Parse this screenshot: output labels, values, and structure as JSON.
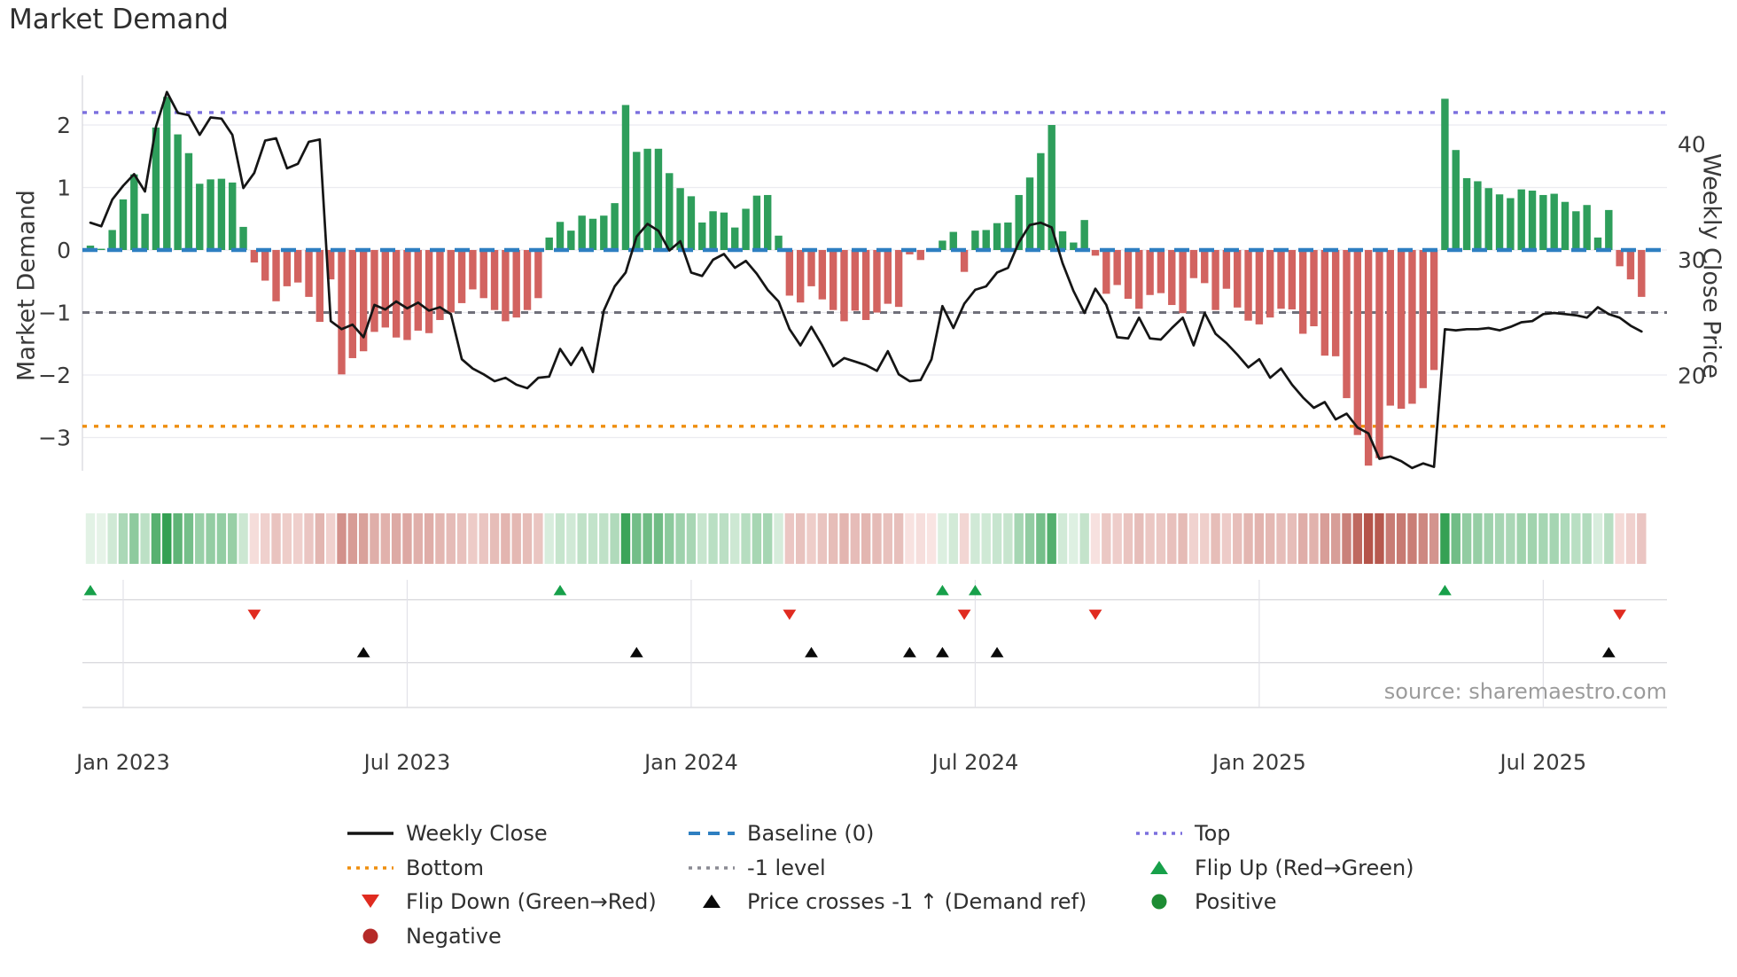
{
  "chart_data": {
    "type": "bar+line combo with heatmap strip and event markers",
    "title": "Market Demand",
    "source": "source: sharemaestro.com",
    "left_axis": {
      "label": "Market Demand",
      "ticks": [
        2,
        1,
        0,
        -1,
        -2,
        -3
      ],
      "tick_labels": [
        "2",
        "1",
        "0",
        "−1",
        "−2",
        "−3"
      ],
      "range": [
        -3.7,
        2.85
      ]
    },
    "right_axis": {
      "label": "Weekly Close Price",
      "ticks": [
        40,
        30,
        20
      ],
      "tick_labels": [
        "40",
        "30",
        "20"
      ]
    },
    "x_ticks": {
      "weeks": [
        3,
        29,
        55,
        81,
        107,
        133
      ],
      "labels": [
        "Jan 2023",
        "Jul 2023",
        "Jan 2024",
        "Jul 2024",
        "Jan 2025",
        "Jul 2025"
      ]
    },
    "ref_lines": {
      "top": 2.2,
      "baseline": 0,
      "minus1": -1,
      "bottom": -2.82
    },
    "series": [
      {
        "name": "Market Demand (weekly bars)",
        "values": [
          0.07,
          0.02,
          0.32,
          0.81,
          1.21,
          0.58,
          1.96,
          2.45,
          1.85,
          1.55,
          1.06,
          1.13,
          1.14,
          1.08,
          0.37,
          -0.2,
          -0.49,
          -0.82,
          -0.58,
          -0.52,
          -0.75,
          -1.15,
          -0.47,
          -1.99,
          -1.73,
          -1.62,
          -1.31,
          -1.24,
          -1.4,
          -1.44,
          -1.29,
          -1.33,
          -1.12,
          -1.0,
          -0.85,
          -0.63,
          -0.77,
          -0.96,
          -1.14,
          -1.08,
          -0.96,
          -0.77,
          0.2,
          0.45,
          0.31,
          0.55,
          0.5,
          0.55,
          0.75,
          2.32,
          1.57,
          1.62,
          1.62,
          1.23,
          0.99,
          0.86,
          0.44,
          0.62,
          0.6,
          0.36,
          0.66,
          0.87,
          0.88,
          0.23,
          -0.73,
          -0.84,
          -0.58,
          -0.79,
          -0.96,
          -1.14,
          -0.97,
          -1.12,
          -1.0,
          -0.86,
          -0.91,
          -0.07,
          -0.16,
          -0.02,
          0.15,
          0.29,
          -0.35,
          0.31,
          0.32,
          0.43,
          0.44,
          0.88,
          1.16,
          1.55,
          2.0,
          0.3,
          0.12,
          0.48,
          -0.09,
          -0.7,
          -0.56,
          -0.78,
          -0.94,
          -0.72,
          -0.69,
          -0.88,
          -1.01,
          -0.45,
          -0.53,
          -0.96,
          -0.62,
          -0.92,
          -1.13,
          -1.19,
          -1.08,
          -0.94,
          -0.95,
          -1.34,
          -1.22,
          -1.69,
          -1.7,
          -2.37,
          -2.96,
          -3.45,
          -3.33,
          -2.49,
          -2.54,
          -2.46,
          -2.21,
          -1.92,
          2.42,
          1.6,
          1.15,
          1.1,
          0.99,
          0.89,
          0.83,
          0.97,
          0.95,
          0.88,
          0.9,
          0.77,
          0.62,
          0.72,
          0.2,
          0.64,
          -0.26,
          -0.47,
          -0.75
        ]
      },
      {
        "name": "Weekly Close",
        "values": [
          33.2,
          32.9,
          35.2,
          36.4,
          37.4,
          35.9,
          41.5,
          44.5,
          42.7,
          42.5,
          40.8,
          42.3,
          42.2,
          40.8,
          36.2,
          37.5,
          40.3,
          40.5,
          37.9,
          38.3,
          40.2,
          40.4,
          24.7,
          24.0,
          24.4,
          23.3,
          26.1,
          25.7,
          26.4,
          25.8,
          26.3,
          25.6,
          25.9,
          25.3,
          21.4,
          20.6,
          20.1,
          19.5,
          19.8,
          19.2,
          18.9,
          19.8,
          19.9,
          22.3,
          20.9,
          22.4,
          20.3,
          25.6,
          27.7,
          28.9,
          32.0,
          33.1,
          32.5,
          30.8,
          31.6,
          28.9,
          28.6,
          30.0,
          30.5,
          29.3,
          29.9,
          28.8,
          27.4,
          26.4,
          24.0,
          22.6,
          24.2,
          22.6,
          20.8,
          21.5,
          21.2,
          20.9,
          20.4,
          22.1,
          20.1,
          19.5,
          19.6,
          21.4,
          26.0,
          24.1,
          26.2,
          27.4,
          27.7,
          28.9,
          29.3,
          31.5,
          33.0,
          33.2,
          32.8,
          29.7,
          27.3,
          25.4,
          27.5,
          26.1,
          23.3,
          23.2,
          25.0,
          23.2,
          23.1,
          24.1,
          25.0,
          22.6,
          25.4,
          23.6,
          22.8,
          21.8,
          20.7,
          21.4,
          19.8,
          20.6,
          19.2,
          18.1,
          17.2,
          17.7,
          16.2,
          16.7,
          15.5,
          15.0,
          12.8,
          13.0,
          12.6,
          12.0,
          12.4,
          12.1,
          24.0,
          23.9,
          24.0,
          24.0,
          24.1,
          23.9,
          24.2,
          24.6,
          24.7,
          25.3,
          25.4,
          25.3,
          25.2,
          25.0,
          25.9,
          25.3,
          25.0,
          24.3,
          23.8
        ]
      }
    ],
    "markers": {
      "flip_up_weeks": [
        0,
        43,
        78,
        81,
        124
      ],
      "flip_down_weeks": [
        15,
        64,
        80,
        92,
        140
      ],
      "price_cross_weeks": [
        25,
        50,
        66,
        75,
        78,
        83,
        139
      ]
    },
    "heatmap": {
      "note": "one cell per week, tint scales with |demand|",
      "positive_dark": "#2f9e4f",
      "positive_light": "#e7f4e9",
      "negative_dark": "#b5544a",
      "negative_light": "#f9e5e3"
    },
    "legend": {
      "columns": [
        {
          "items": [
            {
              "swatch": "line",
              "color": "#141414",
              "label": "Weekly Close"
            },
            {
              "swatch": "dots",
              "color": "#ef8e0e",
              "label": "Bottom"
            },
            {
              "swatch": "tri-down",
              "color": "#e02b20",
              "label": "Flip Down (Green→Red)"
            },
            {
              "swatch": "circle",
              "color": "#b52a28",
              "label": "Negative"
            }
          ]
        },
        {
          "items": [
            {
              "swatch": "dashes",
              "color": "#2e7fc1",
              "label": "Baseline (0)"
            },
            {
              "swatch": "dots",
              "color": "#8a8a92",
              "label": "-1 level"
            },
            {
              "swatch": "tri-up",
              "color": "#0a0a0a",
              "label": "Price crosses -1 ↑ (Demand ref)"
            },
            {
              "swatch": "none",
              "color": "#ffffff",
              "label": ""
            }
          ]
        },
        {
          "items": [
            {
              "swatch": "dots",
              "color": "#7b6fde",
              "label": "Top"
            },
            {
              "swatch": "tri-up",
              "color": "#17a04a",
              "label": "Flip Up (Red→Green)"
            },
            {
              "swatch": "circle",
              "color": "#1d8c33",
              "label": "Positive"
            },
            {
              "swatch": "none",
              "color": "#ffffff",
              "label": ""
            }
          ]
        }
      ]
    },
    "colors": {
      "bar_positive": "#2e9e5b",
      "bar_negative": "#d26360",
      "price_line": "#151515",
      "baseline": "#2e7fc1",
      "top_line": "#7b6fde",
      "bottom_line": "#ef8e0e",
      "minus1_line": "#70707a",
      "flip_up": "#17a04a",
      "flip_down": "#e02b20",
      "price_cross": "#0a0a0a",
      "grid": "#ebebf0",
      "separator": "#d6d6db",
      "tick_text": "#3a3a3a"
    }
  }
}
